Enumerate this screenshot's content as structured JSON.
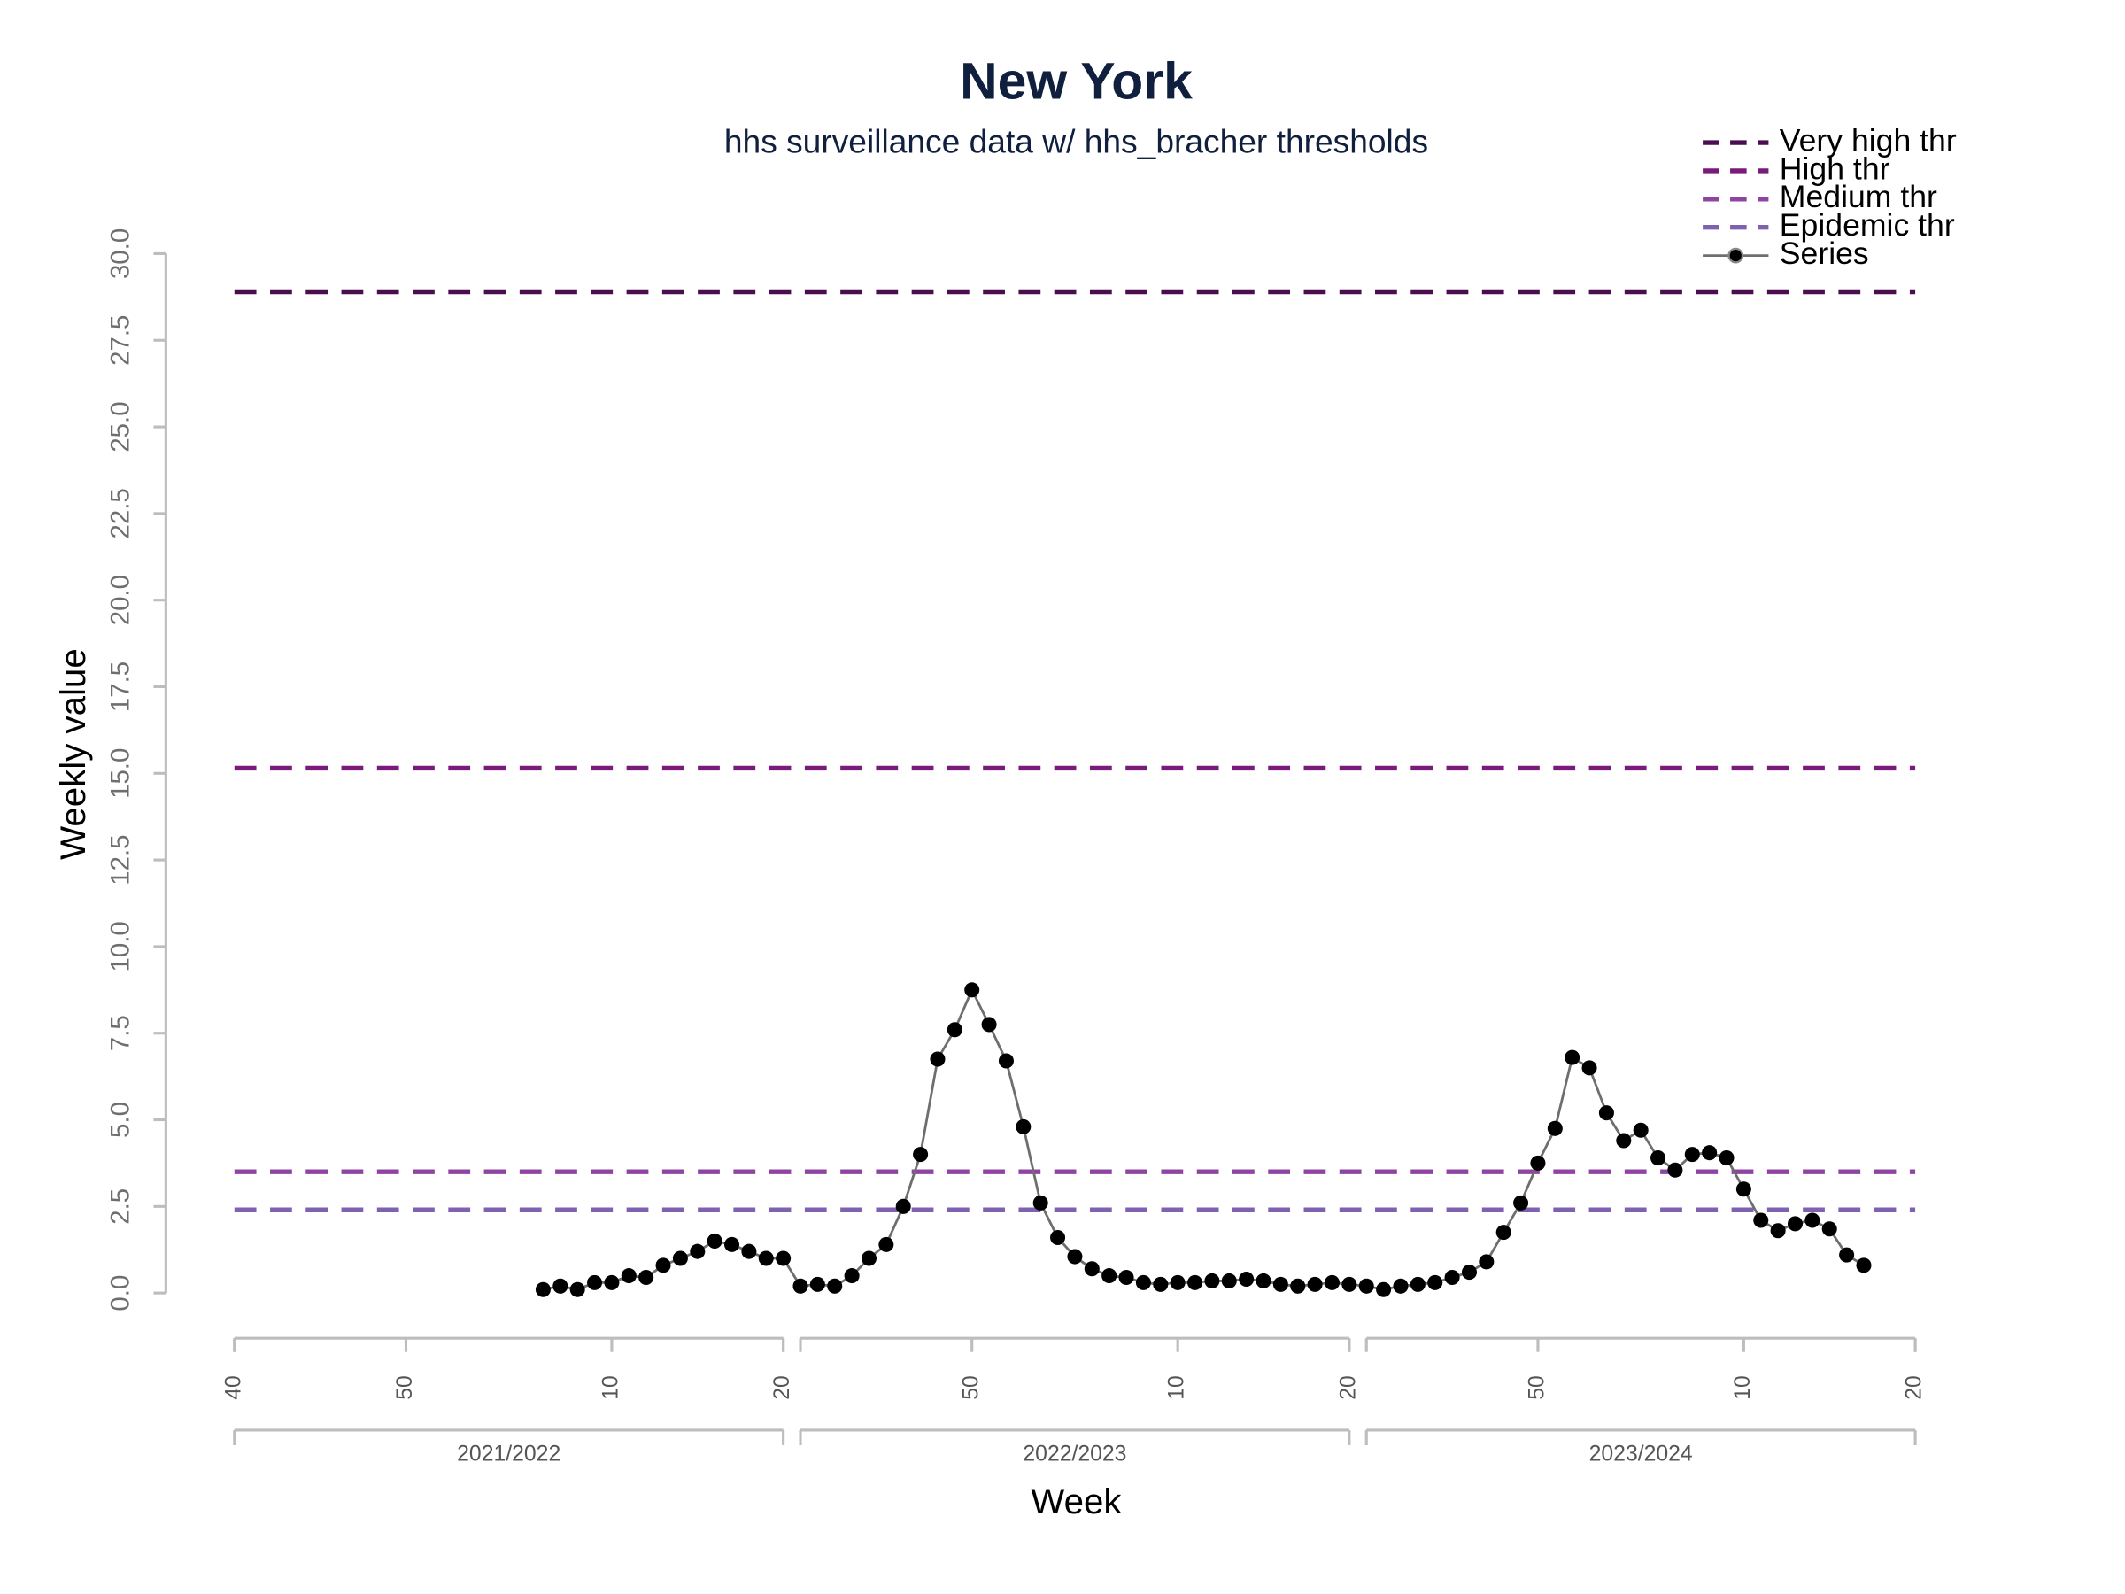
{
  "chart_data": {
    "type": "line",
    "title": "New York",
    "subtitle": "hhs surveillance data w/ hhs_bracher thresholds",
    "xlabel": "Week",
    "ylabel": "Weekly value",
    "legend_position": "top-right",
    "xlim": [
      0,
      98
    ],
    "ylim": [
      0,
      30
    ],
    "yticks": [
      {
        "value": 0,
        "label": "0.0"
      },
      2.5,
      {
        "value": 5,
        "label": "5.0"
      },
      7.5,
      {
        "value": 10,
        "label": "10.0"
      },
      12.5,
      {
        "value": 15,
        "label": "15.0"
      },
      17.5,
      {
        "value": 20,
        "label": "20.0"
      },
      22.5,
      {
        "value": 25,
        "label": "25.0"
      },
      27.5,
      {
        "value": 30,
        "label": "30.0"
      }
    ],
    "xticks": [
      {
        "value": 0,
        "label": "40"
      },
      {
        "value": 10,
        "label": "50"
      },
      {
        "value": 22,
        "label": "10"
      },
      {
        "value": 32,
        "label": "20"
      },
      {
        "value": 43,
        "label": "50"
      },
      {
        "value": 55,
        "label": "10"
      },
      {
        "value": 65,
        "label": "20"
      },
      {
        "value": 76,
        "label": "50"
      },
      {
        "value": 88,
        "label": "10"
      },
      {
        "value": 98,
        "label": "20"
      }
    ],
    "seasons": [
      {
        "label": "2021/2022",
        "start": 0,
        "end": 32
      },
      {
        "label": "2022/2023",
        "start": 33,
        "end": 65
      },
      {
        "label": "2023/2024",
        "start": 66,
        "end": 98
      }
    ],
    "thresholds": [
      {
        "name": "Very high thr",
        "value": 28.9,
        "color": "#4a0e4e"
      },
      {
        "name": "High thr",
        "value": 15.15,
        "color": "#7a1a7a"
      },
      {
        "name": "Medium thr",
        "value": 3.5,
        "color": "#8e44a0"
      },
      {
        "name": "Epidemic thr",
        "value": 2.4,
        "color": "#7e62b0"
      }
    ],
    "x": [
      18,
      19,
      20,
      21,
      22,
      23,
      24,
      25,
      26,
      27,
      28,
      29,
      30,
      31,
      32,
      33,
      34,
      35,
      36,
      37,
      38,
      39,
      40,
      41,
      42,
      43,
      44,
      45,
      46,
      47,
      48,
      49,
      50,
      51,
      52,
      53,
      54,
      55,
      56,
      57,
      58,
      59,
      60,
      61,
      62,
      63,
      64,
      65,
      66,
      67,
      68,
      69,
      70,
      71,
      72,
      73,
      74,
      75,
      76,
      77,
      78,
      79,
      80,
      81,
      82,
      83,
      84,
      85,
      86,
      87,
      88,
      89,
      90,
      91,
      92,
      93,
      94,
      95
    ],
    "series": [
      {
        "name": "Series",
        "color": "#000000",
        "line_color": "#6e6e6e",
        "values": [
          0.1,
          0.2,
          0.1,
          0.3,
          0.3,
          0.5,
          0.45,
          0.8,
          1.0,
          1.2,
          1.5,
          1.4,
          1.2,
          1.0,
          1.0,
          0.2,
          0.25,
          0.2,
          0.5,
          1.0,
          1.4,
          2.5,
          4.0,
          6.75,
          7.6,
          8.75,
          7.75,
          6.7,
          4.8,
          2.6,
          1.6,
          1.05,
          0.7,
          0.5,
          0.45,
          0.3,
          0.25,
          0.3,
          0.3,
          0.35,
          0.35,
          0.4,
          0.35,
          0.25,
          0.2,
          0.25,
          0.3,
          0.25,
          0.2,
          0.1,
          0.2,
          0.25,
          0.3,
          0.45,
          0.6,
          0.9,
          1.75,
          2.6,
          3.75,
          4.75,
          6.8,
          6.5,
          5.2,
          4.4,
          4.7,
          3.9,
          3.55,
          4.0,
          4.05,
          3.9,
          3.0,
          2.1,
          1.8,
          2.0,
          2.1,
          1.85,
          1.1,
          0.8
        ]
      }
    ]
  }
}
